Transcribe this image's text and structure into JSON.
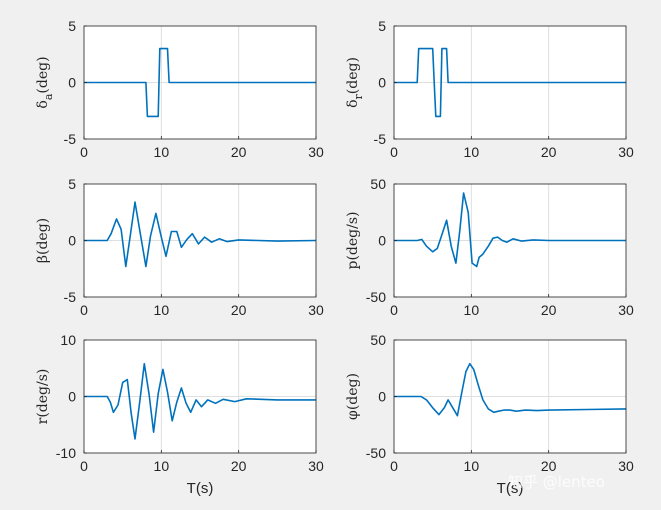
{
  "colors": {
    "background": "#f0f0f0",
    "axes_bg": "#ffffff",
    "line": "#0072bd",
    "grid": "#dfdfdf",
    "axis": "#262626"
  },
  "watermark": "知乎 @lenteo",
  "chart_data": [
    {
      "type": "line",
      "ylabel": "δa(deg)",
      "ylabel_main": "δ",
      "ylabel_sub": "a",
      "ylabel_tail": "(deg)",
      "xlabel": "",
      "xlim": [
        0,
        30
      ],
      "ylim": [
        -5,
        5
      ],
      "xticks": [
        "0",
        "10",
        "20",
        "30"
      ],
      "yticks": [
        "5",
        "0",
        "-5"
      ],
      "grid": true,
      "series": [
        {
          "x": [
            0,
            8,
            8.2,
            9.6,
            9.8,
            10.8,
            11.0,
            30
          ],
          "y": [
            0,
            0,
            -3,
            -3,
            3,
            3,
            0,
            0
          ]
        }
      ]
    },
    {
      "type": "line",
      "ylabel": "δr(deg)",
      "ylabel_main": "δ",
      "ylabel_sub": "r",
      "ylabel_tail": "(deg)",
      "xlabel": "",
      "xlim": [
        0,
        30
      ],
      "ylim": [
        -5,
        5
      ],
      "xticks": [
        "0",
        "10",
        "20",
        "30"
      ],
      "yticks": [
        "5",
        "0",
        "-5"
      ],
      "grid": true,
      "series": [
        {
          "x": [
            0,
            3.0,
            3.2,
            5.0,
            5.2,
            5.4,
            5.6,
            6.0,
            6.2,
            6.8,
            7.0,
            30
          ],
          "y": [
            0,
            0,
            3,
            3,
            0,
            -3,
            -3,
            -3,
            3,
            3,
            0,
            0
          ]
        }
      ]
    },
    {
      "type": "line",
      "ylabel": "β(deg)",
      "ylabel_main": "β",
      "ylabel_sub": "",
      "ylabel_tail": "(deg)",
      "xlabel": "",
      "xlim": [
        0,
        30
      ],
      "ylim": [
        -5,
        5
      ],
      "xticks": [
        "0",
        "10",
        "20",
        "30"
      ],
      "yticks": [
        "5",
        "0",
        "-5"
      ],
      "grid": true,
      "series": [
        {
          "x": [
            0,
            3.0,
            3.5,
            4.2,
            4.8,
            5.4,
            6.0,
            6.6,
            7.3,
            8.0,
            8.6,
            9.3,
            10.0,
            10.6,
            11.3,
            12.0,
            12.6,
            13.3,
            14.0,
            14.8,
            15.6,
            16.5,
            17.5,
            18.5,
            20,
            25,
            30
          ],
          "y": [
            0,
            0,
            0.6,
            1.9,
            1.0,
            -2.3,
            0.5,
            3.4,
            0.5,
            -2.3,
            0.4,
            2.4,
            0.3,
            -1.4,
            0.8,
            0.8,
            -0.6,
            0.1,
            0.6,
            -0.3,
            0.3,
            -0.15,
            0.15,
            -0.1,
            0.05,
            -0.05,
            0
          ]
        }
      ]
    },
    {
      "type": "line",
      "ylabel": "p(deg/s)",
      "ylabel_main": "p(deg/s)",
      "ylabel_sub": "",
      "ylabel_tail": "",
      "xlabel": "",
      "xlim": [
        0,
        30
      ],
      "ylim": [
        -50,
        50
      ],
      "xticks": [
        "0",
        "10",
        "20",
        "30"
      ],
      "yticks": [
        "50",
        "0",
        "-50"
      ],
      "grid": true,
      "series": [
        {
          "x": [
            0,
            3.0,
            3.6,
            4.2,
            5.0,
            5.6,
            6.2,
            6.8,
            7.4,
            8.0,
            8.5,
            9.0,
            9.6,
            10.1,
            10.7,
            11.0,
            11.5,
            12.2,
            12.8,
            13.4,
            14.0,
            14.6,
            15.4,
            16.5,
            18,
            20,
            30
          ],
          "y": [
            0,
            0,
            1,
            -5,
            -10,
            -7,
            5,
            18,
            -5,
            -20,
            8,
            42,
            25,
            -20,
            -23,
            -15,
            -12,
            -5,
            2,
            3,
            0,
            -1.5,
            1.5,
            -0.5,
            0.5,
            0,
            0
          ]
        }
      ]
    },
    {
      "type": "line",
      "ylabel": "r(deg/s)",
      "ylabel_main": "r(deg/s)",
      "ylabel_sub": "",
      "ylabel_tail": "",
      "xlabel": "T(s)",
      "xlim": [
        0,
        30
      ],
      "ylim": [
        -10,
        10
      ],
      "xticks": [
        "0",
        "10",
        "20",
        "30"
      ],
      "yticks": [
        "10",
        "0",
        "-10"
      ],
      "grid": true,
      "series": [
        {
          "x": [
            0,
            3.0,
            3.4,
            3.8,
            4.4,
            5.0,
            5.6,
            6.1,
            6.6,
            7.2,
            7.8,
            8.4,
            9.0,
            9.6,
            10.2,
            10.8,
            11.4,
            12.0,
            12.6,
            13.2,
            13.8,
            14.5,
            15.2,
            16.0,
            17.0,
            18.0,
            19.5,
            21,
            25,
            30
          ],
          "y": [
            0,
            0,
            -1,
            -2.8,
            -1.5,
            2.5,
            3.0,
            -3.0,
            -7.5,
            -1,
            5.8,
            0.5,
            -6.3,
            0.5,
            4.8,
            0.8,
            -4.3,
            -1.0,
            1.5,
            -1.2,
            -2.8,
            -0.6,
            -1.8,
            -0.6,
            -1.2,
            -0.5,
            -0.9,
            -0.4,
            -0.6,
            -0.6
          ]
        }
      ]
    },
    {
      "type": "line",
      "ylabel": "φ(deg)",
      "ylabel_main": "φ",
      "ylabel_sub": "",
      "ylabel_tail": "(deg)",
      "xlabel": "T(s)",
      "xlim": [
        0,
        30
      ],
      "ylim": [
        -50,
        50
      ],
      "xticks": [
        "0",
        "10",
        "20",
        "30"
      ],
      "yticks": [
        "50",
        "0",
        "-50"
      ],
      "grid": true,
      "series": [
        {
          "x": [
            0,
            3.5,
            4.2,
            5.0,
            5.8,
            6.5,
            7.0,
            7.6,
            8.2,
            8.8,
            9.3,
            9.8,
            10.3,
            10.9,
            11.5,
            12.2,
            12.9,
            13.5,
            14.2,
            15.0,
            15.8,
            17,
            18.5,
            20,
            25,
            30
          ],
          "y": [
            0,
            0,
            -3,
            -10,
            -16,
            -10,
            -3,
            -10,
            -17,
            5,
            22,
            29,
            24,
            10,
            -3,
            -11,
            -14,
            -13,
            -12,
            -12,
            -13,
            -12,
            -12.5,
            -12,
            -11.5,
            -11
          ]
        }
      ]
    }
  ]
}
